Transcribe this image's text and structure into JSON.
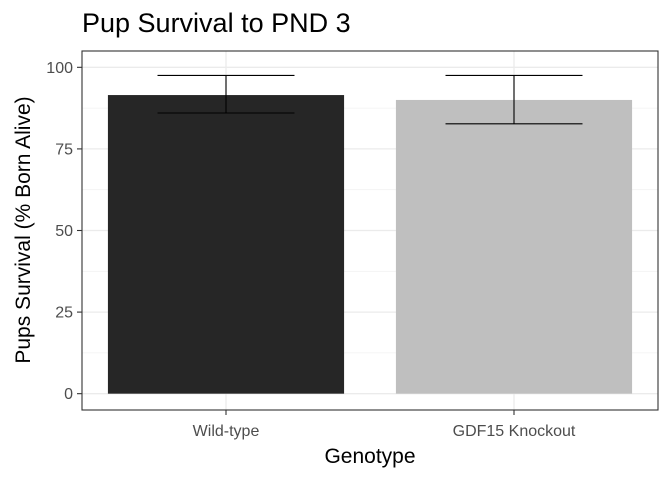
{
  "chart_data": {
    "type": "bar",
    "title": "Pup Survival to PND 3",
    "xlabel": "Genotype",
    "ylabel": "Pups Survival (% Born Alive)",
    "categories": [
      "Wild-type",
      "GDF15 Knockout"
    ],
    "values": [
      91.5,
      90
    ],
    "error_low": [
      86,
      82.7
    ],
    "error_high": [
      97.5,
      97.5
    ],
    "bar_colors": [
      "#262626",
      "#bfbfbf"
    ],
    "ylim": [
      -5,
      105
    ],
    "yticks": [
      0,
      25,
      50,
      75,
      100
    ],
    "ytick_labels": [
      "0",
      "25",
      "50",
      "75",
      "100"
    ],
    "grid": true,
    "legend": "none"
  }
}
